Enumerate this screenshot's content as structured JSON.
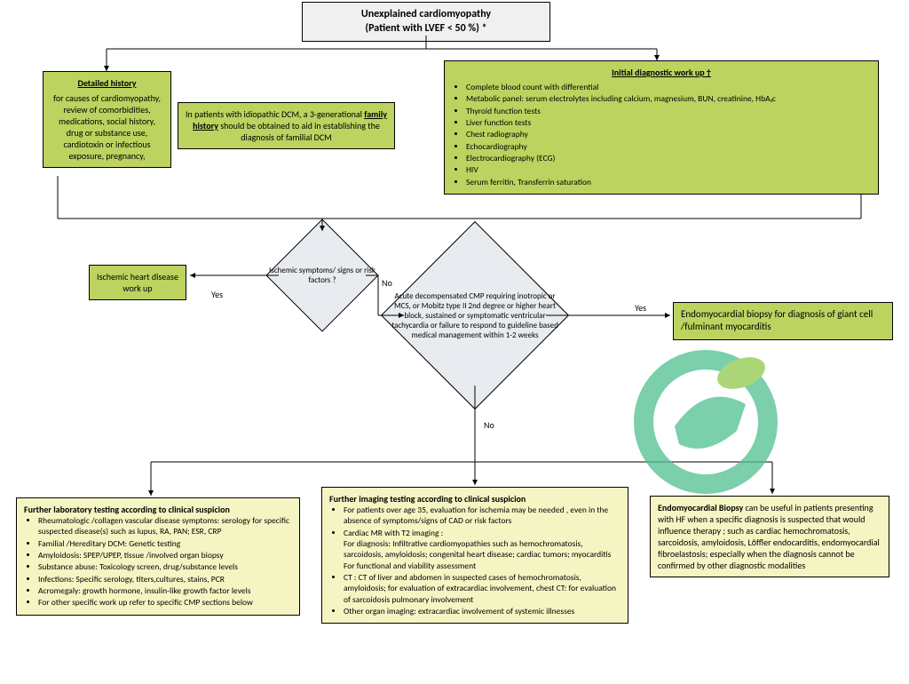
{
  "colors": {
    "green": "#bcd35f",
    "yellow": "#f5f5c3",
    "diamond": "#e8ecf0",
    "border": "#000000",
    "line": "#000000"
  },
  "title": {
    "line1": "Unexplained cardiomyopathy",
    "line2": "(Patient with LVEF < 50 %) *"
  },
  "detailed_history": {
    "heading": "Detailed history",
    "body": "for causes of cardiomyopathy, review of comorbidities, medications, social history, drug or substance use, cardiotoxin or infectious exposure, pregnancy,"
  },
  "family_history": "In patients with idiopathic DCM, a 3-generational family history should be obtained to aid in establishing the diagnosis of familial DCM",
  "workup": {
    "heading": "Initial diagnostic work up †",
    "items": [
      "Complete blood count with differential",
      "Metabolic panel: serum electrolytes including calcium, magnesium, BUN, creatinine, HbA₁c",
      "Thyroid function tests",
      "Liver function tests",
      "Chest radiography",
      "Echocardiography",
      "Electrocardiography (ECG)",
      "HIV",
      "Serum ferritin, Transferrin saturation"
    ]
  },
  "diamond1": "Ischemic symptoms/ signs or risk factors ?",
  "ischemic_box": "Ischemic heart disease work up",
  "diamond2": "Acute decompensated CMP requiring inotropic or MCS, or Mobitz type II 2nd degree or higher heart block, sustained or symptomatic ventricular tachycardia or failure to respond to guideline based medical management within 1-2 weeks",
  "biopsy_box": "Endomyocardial biopsy for diagnosis of giant cell /fulminant myocarditis",
  "labels": {
    "yes": "Yes",
    "no": "No"
  },
  "lab_testing": {
    "heading": "Further laboratory testing according to clinical suspicion",
    "items": [
      "Rheumatologic /collagen vascular disease symptoms: serology for specific suspected disease(s) such as lupus, RA, PAN;  ESR, CRP",
      "Familial /Hereditary DCM: Genetic testing",
      "Amyloidosis: SPEP/UPEP, tissue /involved organ biopsy",
      "Substance abuse:  Toxicology screen, drug/substance levels",
      "Infections: Specific serology, titers,cultures, stains, PCR",
      "Acromegaly: growth hormone, insulin-like growth factor  levels",
      "For other specific work up refer to specific CMP sections below"
    ]
  },
  "imaging_testing": {
    "heading": "Further imaging testing according to clinical suspicion",
    "items": [
      "For patients over age 35, evaluation for ischemia may be needed , even in the absence of symptoms/signs of CAD or risk factors",
      "Cardiac MR with T2 imaging :\nFor diagnosis: Infiltrative cardiomyopathies such as hemochromatosis, sarcoidosis, amyloidosis; congenital heart disease; cardiac tumors; myocarditis\nFor functional and viability assessment",
      "CT : CT of liver and abdomen in suspected cases of hemochromatosis, amyloidosis;  for evaluation of extracardiac involvement, chest CT: for evaluation of sarcoidosis pulmonary involvement",
      "Other organ imaging: extracardiac involvement of systemic illnesses"
    ]
  },
  "emb_box": "Endomyocardial Biopsy can be useful in patients presenting with HF when a specific diagnosis is suspected that would influence therapy ; such as cardiac  hemochromatosis, sarcoidosis, amyloidosis, Löffler endocarditis, endomyocardial fibroelastosis; especially when the diagnosis cannot be confirmed by other diagnostic modalities"
}
